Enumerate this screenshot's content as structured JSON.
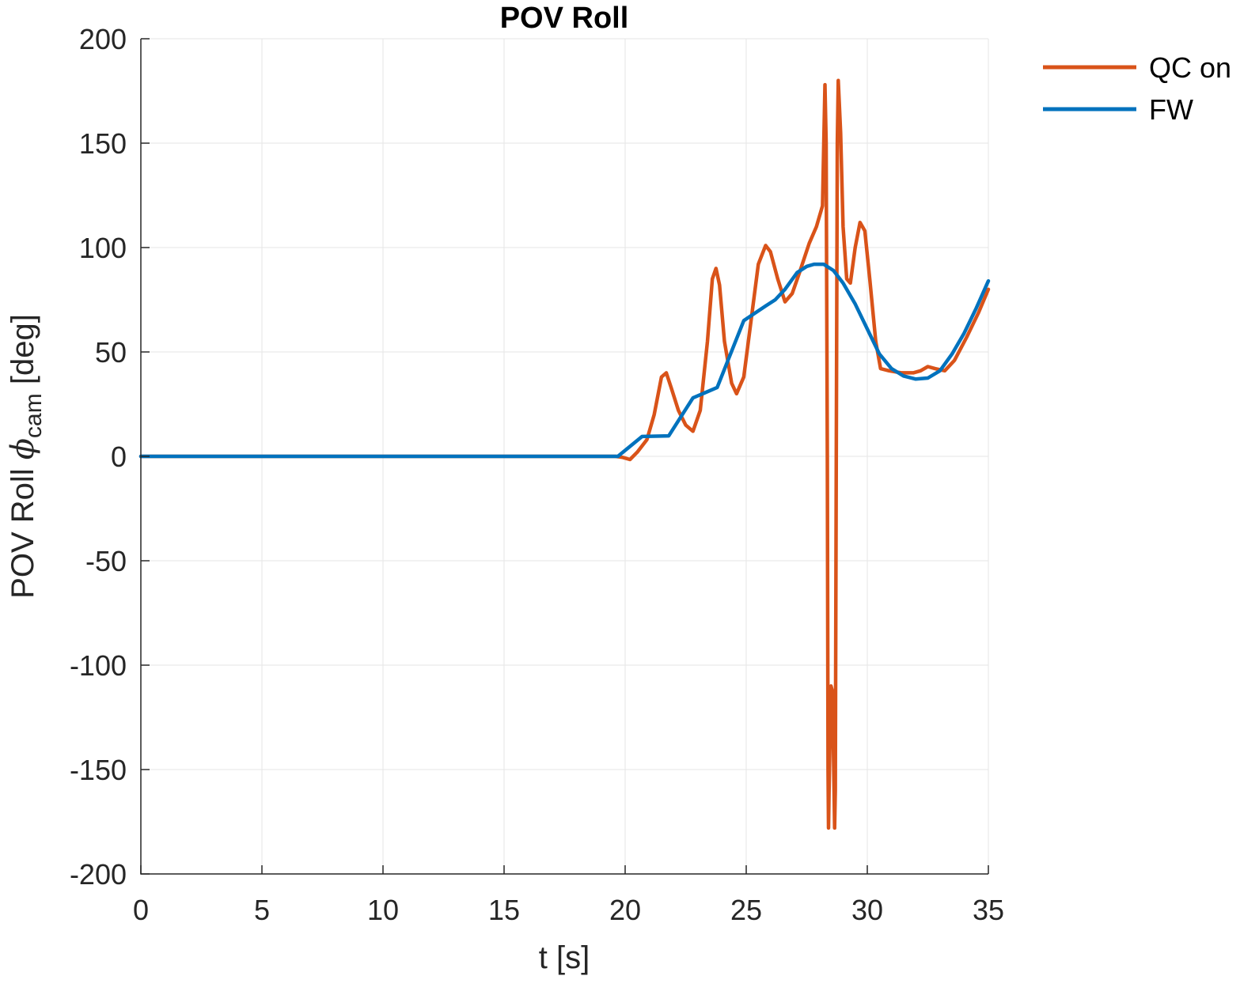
{
  "chart_data": {
    "type": "line",
    "title": "POV Roll",
    "xlabel": "t [s]",
    "ylabel_prefix": "POV Roll ",
    "ylabel_symbol": "ϕ",
    "ylabel_subscript": "cam",
    "ylabel_suffix": " [deg]",
    "xlim": [
      0,
      35
    ],
    "ylim": [
      -200,
      200
    ],
    "xticks": [
      "0",
      "5",
      "10",
      "15",
      "20",
      "25",
      "30",
      "35"
    ],
    "yticks": [
      "200",
      "150",
      "100",
      "50",
      "0",
      "-50",
      "-100",
      "-150",
      "-200"
    ],
    "grid": true,
    "legend_position": "top-right (outside)",
    "series": [
      {
        "name": "QC on",
        "color": "#D95319",
        "points": [
          [
            0,
            0
          ],
          [
            19.6,
            0
          ],
          [
            19.9,
            -0.5
          ],
          [
            20.2,
            -1.5
          ],
          [
            20.5,
            2
          ],
          [
            20.9,
            8
          ],
          [
            21.2,
            20
          ],
          [
            21.5,
            38
          ],
          [
            21.7,
            40
          ],
          [
            21.9,
            33
          ],
          [
            22.2,
            22
          ],
          [
            22.5,
            15
          ],
          [
            22.8,
            12
          ],
          [
            23.1,
            22
          ],
          [
            23.4,
            55
          ],
          [
            23.6,
            85
          ],
          [
            23.75,
            90
          ],
          [
            23.9,
            82
          ],
          [
            24.1,
            55
          ],
          [
            24.4,
            35
          ],
          [
            24.6,
            30
          ],
          [
            24.9,
            38
          ],
          [
            25.2,
            65
          ],
          [
            25.5,
            92
          ],
          [
            25.8,
            101
          ],
          [
            26.0,
            98
          ],
          [
            26.3,
            85
          ],
          [
            26.6,
            74
          ],
          [
            26.9,
            78
          ],
          [
            27.2,
            88
          ],
          [
            27.6,
            102
          ],
          [
            27.9,
            110
          ],
          [
            28.15,
            120
          ],
          [
            28.25,
            178
          ],
          [
            28.3,
            150
          ],
          [
            28.35,
            0
          ],
          [
            28.38,
            -150
          ],
          [
            28.4,
            -178
          ],
          [
            28.42,
            -160
          ],
          [
            28.5,
            -110
          ],
          [
            28.55,
            -112
          ],
          [
            28.6,
            -140
          ],
          [
            28.65,
            -178
          ],
          [
            28.68,
            -160
          ],
          [
            28.72,
            0
          ],
          [
            28.76,
            150
          ],
          [
            28.8,
            180
          ],
          [
            28.9,
            155
          ],
          [
            29.0,
            110
          ],
          [
            29.15,
            85
          ],
          [
            29.3,
            83
          ],
          [
            29.5,
            100
          ],
          [
            29.7,
            112
          ],
          [
            29.9,
            108
          ],
          [
            30.1,
            85
          ],
          [
            30.35,
            55
          ],
          [
            30.55,
            42
          ],
          [
            30.9,
            41
          ],
          [
            31.4,
            40
          ],
          [
            31.9,
            40
          ],
          [
            32.2,
            41
          ],
          [
            32.5,
            43
          ],
          [
            32.8,
            42
          ],
          [
            33.2,
            41
          ],
          [
            33.6,
            46
          ],
          [
            34.1,
            57
          ],
          [
            34.6,
            69
          ],
          [
            35,
            80
          ]
        ]
      },
      {
        "name": "FW",
        "color": "#0072BD",
        "points": [
          [
            0,
            0
          ],
          [
            19.7,
            0
          ],
          [
            20.7,
            9.5
          ],
          [
            21.8,
            9.8
          ],
          [
            22.8,
            28
          ],
          [
            23.8,
            33
          ],
          [
            24.9,
            65
          ],
          [
            25.8,
            72
          ],
          [
            26.2,
            75
          ],
          [
            26.6,
            80
          ],
          [
            27.1,
            88
          ],
          [
            27.5,
            91
          ],
          [
            27.8,
            92
          ],
          [
            28.2,
            92
          ],
          [
            28.6,
            89
          ],
          [
            29.0,
            83
          ],
          [
            29.5,
            73
          ],
          [
            30.0,
            61
          ],
          [
            30.5,
            49
          ],
          [
            31.0,
            42
          ],
          [
            31.5,
            38.5
          ],
          [
            32.0,
            37
          ],
          [
            32.5,
            37.5
          ],
          [
            33.0,
            41
          ],
          [
            33.5,
            49
          ],
          [
            34.0,
            59
          ],
          [
            34.5,
            71
          ],
          [
            35,
            84
          ]
        ]
      }
    ]
  }
}
